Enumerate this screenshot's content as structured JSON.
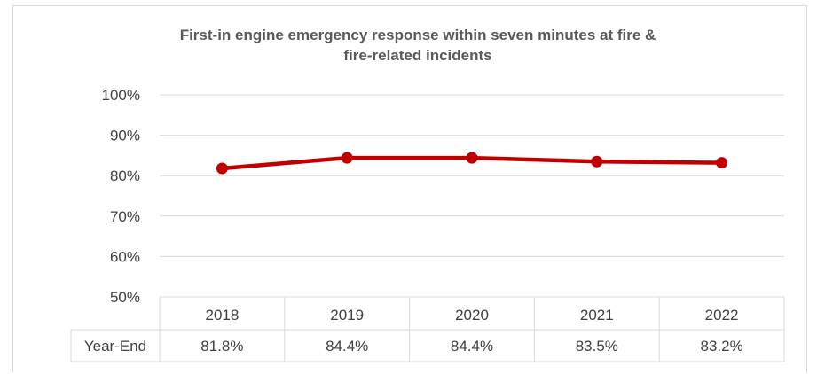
{
  "chart_data": {
    "type": "line",
    "title_lines": [
      "First-in engine emergency response within seven minutes at fire &",
      "fire-related incidents"
    ],
    "categories": [
      "2018",
      "2019",
      "2020",
      "2021",
      "2022"
    ],
    "y_tick_labels": [
      "100%",
      "90%",
      "80%",
      "70%",
      "60%",
      "50%"
    ],
    "ylim": [
      50,
      100
    ],
    "series": [
      {
        "name": "Year-End",
        "values": [
          81.8,
          84.4,
          84.4,
          83.5,
          83.2
        ],
        "value_labels": [
          "81.8%",
          "84.4%",
          "84.4%",
          "83.5%",
          "83.2%"
        ],
        "color": "#c00000"
      }
    ],
    "grid": true,
    "legend": "data table below plot"
  }
}
